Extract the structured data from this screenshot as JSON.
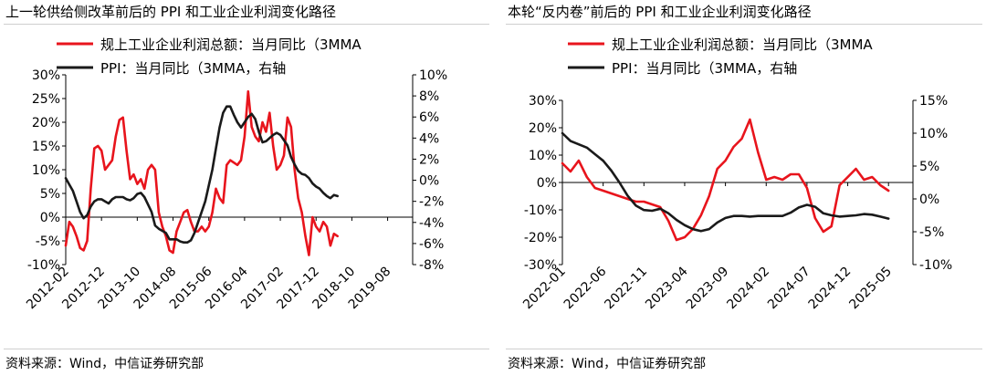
{
  "charts": [
    {
      "title": "上一轮供给侧改革前后的 PPI 和工业企业利润变化路径",
      "source": "资料来源：Wind，中信证券研究部",
      "chart_data": {
        "type": "line",
        "title": "上一轮供给侧改革前后的 PPI 和工业企业利润变化路径",
        "x_start": "2012-02",
        "x_end": "2020-03",
        "x_tick_labels": [
          "2012-02",
          "2012-12",
          "2013-10",
          "2014-08",
          "2015-06",
          "2016-04",
          "2017-02",
          "2017-12",
          "2018-10",
          "2019-08"
        ],
        "y_left": {
          "min": -10,
          "max": 30,
          "step": 5,
          "tick_labels": [
            "-10%",
            "-5%",
            "0%",
            "5%",
            "10%",
            "15%",
            "20%",
            "25%",
            "30%"
          ]
        },
        "y_right": {
          "min": -8,
          "max": 10,
          "step": 2,
          "tick_labels": [
            "-8%",
            "-6%",
            "-4%",
            "-2%",
            "0%",
            "2%",
            "4%",
            "6%",
            "8%",
            "10%"
          ]
        },
        "series": [
          {
            "name": "规上工业企业利润总额：当月同比（3MMA",
            "axis": "left",
            "color": "#e8141c",
            "values": [
              -6,
              -1,
              -2,
              -4,
              -6.5,
              -7,
              -5,
              6,
              14.5,
              15,
              14,
              10,
              11,
              12,
              17,
              20.5,
              21,
              14,
              8,
              9,
              7,
              8,
              6,
              10,
              11,
              10,
              1,
              -2,
              -4,
              -7,
              -7.5,
              -3,
              -1,
              1,
              1.5,
              -1,
              -3,
              -3,
              -2,
              -3,
              -2,
              1,
              6,
              4,
              3,
              11,
              12,
              11.5,
              11,
              12,
              17,
              26.5,
              19,
              17,
              16,
              20,
              18,
              22,
              15,
              10,
              11,
              13,
              21,
              19,
              10,
              4,
              1,
              -4,
              -8,
              0,
              -2,
              -3,
              -1,
              -2,
              -6,
              -3.5,
              -4
            ]
          },
          {
            "name": "PPI：当月同比（3MMA，右轴",
            "axis": "right",
            "color": "#1a1a1a",
            "values": [
              0.2,
              -0.4,
              -1,
              -2,
              -3,
              -3.6,
              -3.3,
              -2.5,
              -2,
              -1.8,
              -1.8,
              -2,
              -2.2,
              -1.8,
              -1.6,
              -1.6,
              -1.6,
              -1.8,
              -1.9,
              -1.7,
              -1.3,
              -1.2,
              -1.6,
              -2.3,
              -3,
              -4.3,
              -4.6,
              -4.8,
              -5,
              -5.6,
              -5.6,
              -5.6,
              -5.8,
              -5.9,
              -5.9,
              -5.7,
              -5,
              -4,
              -3,
              -2,
              -0.5,
              1,
              3,
              5,
              6.4,
              7,
              7,
              6.2,
              5.5,
              5,
              5.5,
              6,
              6.3,
              5.8,
              4.6,
              3.6,
              3.7,
              4,
              4.3,
              4.5,
              4.3,
              3.8,
              3.3,
              2.2,
              1.5,
              0.9,
              0.6,
              0.5,
              0.2,
              -0.3,
              -0.6,
              -0.8,
              -1.2,
              -1.5,
              -1.7,
              -1.4,
              -1.5
            ]
          }
        ],
        "grid": false,
        "legend": "top-left"
      }
    },
    {
      "title": "本轮“反内卷”前后的 PPI 和工业企业利润变化路径",
      "source": "资料来源：Wind，中信证券研究部",
      "chart_data": {
        "type": "line",
        "title": "本轮“反内卷”前后的 PPI 和工业企业利润变化路径",
        "x_start": "2022-01",
        "x_end": "2025-08",
        "x_tick_labels": [
          "2022-01",
          "2022-06",
          "2022-11",
          "2023-04",
          "2023-09",
          "2024-02",
          "2024-07",
          "2024-12",
          "2025-05"
        ],
        "y_left": {
          "min": -30,
          "max": 30,
          "step": 10,
          "tick_labels": [
            "-30%",
            "-20%",
            "-10%",
            "0%",
            "10%",
            "20%",
            "30%"
          ]
        },
        "y_right": {
          "min": -10,
          "max": 15,
          "step": 5,
          "tick_labels": [
            "-10%",
            "-5%",
            "0%",
            "5%",
            "10%",
            "15%"
          ]
        },
        "series": [
          {
            "name": "规上工业企业利润总额：当月同比（3MMA",
            "axis": "left",
            "color": "#e8141c",
            "values": [
              7,
              4,
              8,
              2,
              -2,
              -3,
              -4,
              -5,
              -6,
              -7,
              -7,
              -8,
              -9,
              -14,
              -21,
              -20,
              -17,
              -12,
              -5,
              5,
              8,
              13,
              16,
              23,
              11,
              1,
              2,
              1,
              3,
              3,
              -2,
              -13,
              -18,
              -16,
              -1,
              2,
              5,
              1,
              2,
              -1,
              -3
            ]
          },
          {
            "name": "PPI：当月同比（3MMA，右轴",
            "axis": "right",
            "color": "#1a1a1a",
            "values": [
              10,
              8.8,
              8.3,
              7.8,
              6.8,
              5.8,
              4.3,
              2.5,
              0.5,
              -1,
              -1.7,
              -1.8,
              -1.5,
              -2.2,
              -3.2,
              -4,
              -4.6,
              -4.9,
              -4.6,
              -3.6,
              -2.9,
              -2.6,
              -2.6,
              -2.7,
              -2.6,
              -2.6,
              -2.6,
              -2.6,
              -2.1,
              -1.3,
              -0.9,
              -1.2,
              -2.2,
              -2.5,
              -2.7,
              -2.6,
              -2.5,
              -2.3,
              -2.4,
              -2.7,
              -3.0
            ]
          }
        ],
        "grid": false,
        "legend": "top-left"
      }
    }
  ]
}
